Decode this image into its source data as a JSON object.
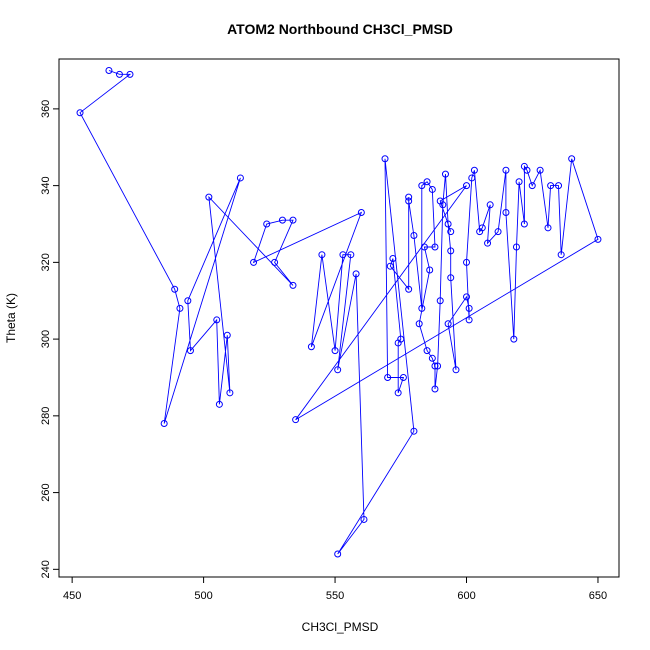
{
  "chart_data": {
    "type": "scatter",
    "title": "ATOM2 Northbound CH3Cl_PMSD",
    "xlabel": "CH3Cl_PMSD",
    "ylabel": "Theta (K)",
    "xlim": [
      445,
      658
    ],
    "ylim": [
      238,
      373
    ],
    "x_ticks": [
      450,
      500,
      550,
      600,
      650
    ],
    "y_ticks": [
      240,
      260,
      280,
      300,
      320,
      340,
      360
    ],
    "connected": true,
    "line_color": "#0000ff",
    "marker": "open-circle",
    "grid": false,
    "points": [
      [
        464,
        370
      ],
      [
        468,
        369
      ],
      [
        472,
        369
      ],
      [
        453,
        359
      ],
      [
        489,
        313
      ],
      [
        491,
        308
      ],
      [
        485,
        278
      ],
      [
        514,
        342
      ],
      [
        494,
        310
      ],
      [
        495,
        297
      ],
      [
        505,
        305
      ],
      [
        506,
        283
      ],
      [
        509,
        301
      ],
      [
        510,
        286
      ],
      [
        502,
        337
      ],
      [
        534,
        314
      ],
      [
        527,
        320
      ],
      [
        534,
        331
      ],
      [
        530,
        331
      ],
      [
        524,
        330
      ],
      [
        519,
        320
      ],
      [
        560,
        333
      ],
      [
        541,
        298
      ],
      [
        545,
        322
      ],
      [
        550,
        297
      ],
      [
        553,
        322
      ],
      [
        556,
        322
      ],
      [
        551,
        292
      ],
      [
        558,
        317
      ],
      [
        561,
        253
      ],
      [
        551,
        244
      ],
      [
        580,
        276
      ],
      [
        569,
        347
      ],
      [
        570,
        290
      ],
      [
        576,
        290
      ],
      [
        574,
        286
      ],
      [
        574,
        299
      ],
      [
        575,
        300
      ],
      [
        572,
        321
      ],
      [
        571,
        319
      ],
      [
        578,
        313
      ],
      [
        578,
        337
      ],
      [
        578,
        336
      ],
      [
        580,
        327
      ],
      [
        583,
        308
      ],
      [
        583,
        340
      ],
      [
        585,
        341
      ],
      [
        587,
        339
      ],
      [
        588,
        324
      ],
      [
        584,
        324
      ],
      [
        586,
        318
      ],
      [
        582,
        304
      ],
      [
        585,
        297
      ],
      [
        587,
        295
      ],
      [
        588,
        293
      ],
      [
        588,
        287
      ],
      [
        589,
        293
      ],
      [
        590,
        310
      ],
      [
        591,
        335
      ],
      [
        592,
        343
      ],
      [
        593,
        330
      ],
      [
        594,
        323
      ],
      [
        594,
        316
      ],
      [
        596,
        292
      ],
      [
        593,
        304
      ],
      [
        600,
        311
      ],
      [
        601,
        308
      ],
      [
        601,
        305
      ],
      [
        600,
        320
      ],
      [
        602,
        342
      ],
      [
        603,
        344
      ],
      [
        605,
        328
      ],
      [
        606,
        329
      ],
      [
        609,
        335
      ],
      [
        608,
        325
      ],
      [
        612,
        328
      ],
      [
        615,
        344
      ],
      [
        615,
        333
      ],
      [
        618,
        300
      ],
      [
        619,
        324
      ],
      [
        620,
        341
      ],
      [
        622,
        330
      ],
      [
        622,
        345
      ],
      [
        623,
        344
      ],
      [
        625,
        340
      ],
      [
        628,
        344
      ],
      [
        631,
        329
      ],
      [
        632,
        340
      ],
      [
        635,
        340
      ],
      [
        636,
        322
      ],
      [
        640,
        347
      ],
      [
        650,
        326
      ],
      [
        535,
        279
      ],
      [
        600,
        340
      ],
      [
        590,
        336
      ],
      [
        594,
        328
      ]
    ]
  }
}
